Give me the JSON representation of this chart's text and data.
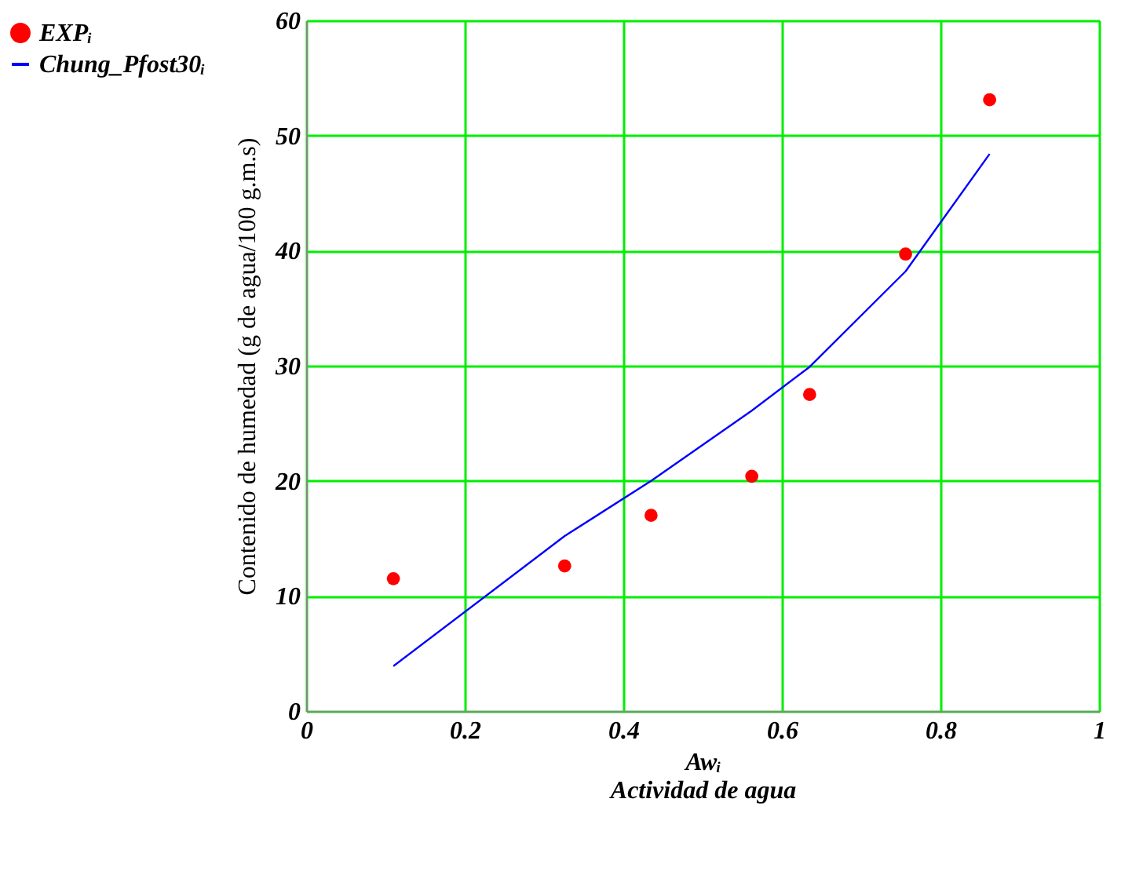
{
  "chart_data": {
    "type": "scatter",
    "xlabel": "Awᵢ",
    "ylabel": "Contenido de humedad (g de agua/100 g.m.s)",
    "annotations": [
      "Actividad de agua"
    ],
    "series": [
      {
        "name": "EXPᵢ",
        "color": "#ff0000",
        "marker": "circle",
        "x": [
          0.11,
          0.326,
          0.435,
          0.562,
          0.635,
          0.756,
          0.862
        ],
        "values": [
          11.5,
          12.6,
          17.0,
          20.4,
          27.5,
          39.7,
          53.1
        ]
      },
      {
        "name": "Chung_Pfost30ᵢ",
        "type": "line",
        "color": "#0000ff",
        "marker": "none",
        "line_style": "solid",
        "x": [
          0.11,
          0.326,
          0.435,
          0.562,
          0.635,
          0.756,
          0.862
        ],
        "values": [
          3.9,
          15.2,
          20.0,
          26.1,
          29.9,
          38.2,
          48.4
        ]
      }
    ],
    "xlim": [
      0,
      1
    ],
    "xticks": [
      0,
      0.2,
      0.4,
      0.6,
      0.8,
      1
    ],
    "ylim": [
      0,
      60
    ],
    "yticks": [
      0,
      10,
      20,
      30,
      40,
      50,
      60
    ],
    "grid": true,
    "legend": "left"
  }
}
